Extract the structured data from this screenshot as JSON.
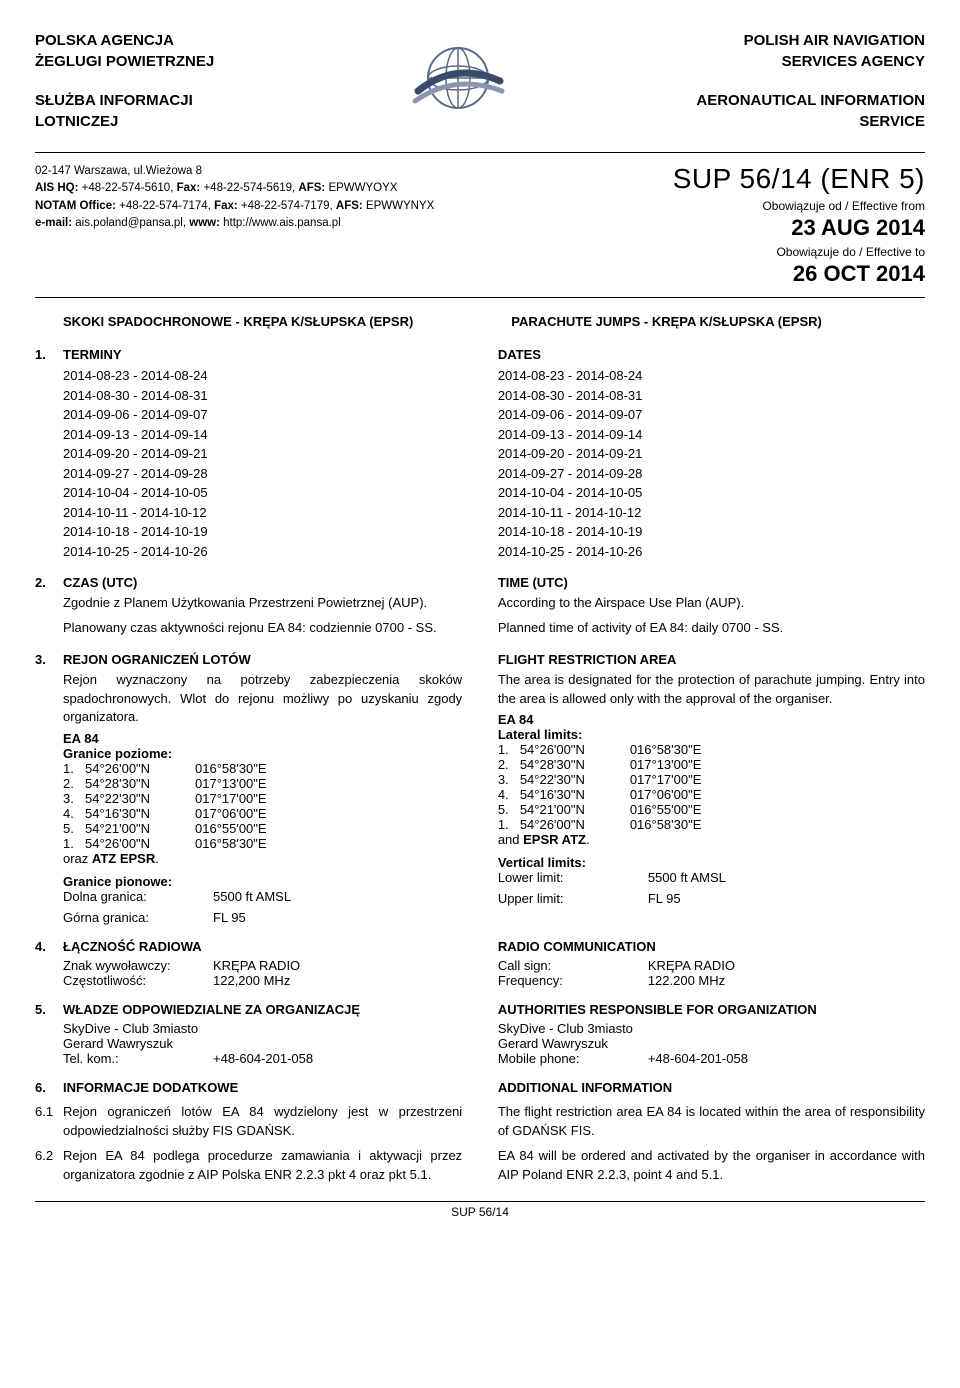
{
  "header": {
    "left_agency": [
      "POLSKA AGENCJA",
      "ŻEGLUGI POWIETRZNEJ"
    ],
    "left_service": [
      "SŁUŻBA INFORMACJI",
      "LOTNICZEJ"
    ],
    "right_agency": [
      "POLISH AIR NAVIGATION",
      "SERVICES AGENCY"
    ],
    "right_service": [
      "AERONAUTICAL INFORMATION",
      "SERVICE"
    ]
  },
  "contact": {
    "addr": "02-147 Warszawa, ul.Wieżowa 8",
    "ais_hq_label": "AIS HQ:",
    "ais_hq": " +48-22-574-5610, ",
    "fax1_label": "Fax:",
    "fax1": " +48-22-574-5619, ",
    "afs1_label": "AFS:",
    "afs1": " EPWWYOYX",
    "notam_label": "NOTAM Office:",
    "notam": " +48-22-574-7174, ",
    "fax2_label": "Fax:",
    "fax2": " +48-22-574-7179, ",
    "afs2_label": "AFS:",
    "afs2": " EPWWYNYX",
    "email_label": "e-mail:",
    "email": " ais.poland@pansa.pl, ",
    "www_label": "www:",
    "www": " http://www.ais.pansa.pl"
  },
  "sup": {
    "title": "SUP 56/14 (ENR 5)",
    "eff_from_label": "Obowiązuje od / Effective from",
    "eff_from": "23 AUG 2014",
    "eff_to_label": "Obowiązuje do / Effective to",
    "eff_to": "26 OCT 2014"
  },
  "titles": {
    "pl": "SKOKI SPADOCHRONOWE - KRĘPA K/SŁUPSKA (EPSR)",
    "en": "PARACHUTE JUMPS - KRĘPA K/SŁUPSKA (EPSR)"
  },
  "s1": {
    "num": "1.",
    "pl_head": "TERMINY",
    "en_head": "DATES",
    "dates": [
      "2014-08-23 - 2014-08-24",
      "2014-08-30 - 2014-08-31",
      "2014-09-06 - 2014-09-07",
      "2014-09-13 - 2014-09-14",
      "2014-09-20 - 2014-09-21",
      "2014-09-27 - 2014-09-28",
      "2014-10-04 - 2014-10-05",
      "2014-10-11 - 2014-10-12",
      "2014-10-18 - 2014-10-19",
      "2014-10-25 - 2014-10-26"
    ]
  },
  "s2": {
    "num": "2.",
    "pl_head": "CZAS (UTC)",
    "en_head": "TIME (UTC)",
    "pl_l1": "Zgodnie z Planem Użytkowania Przestrzeni Powietrznej (AUP).",
    "en_l1": "According to the Airspace Use Plan (AUP).",
    "pl_l2": "Planowany czas aktywności rejonu EA 84: codziennie 0700 - SS.",
    "en_l2": "Planned time of activity of EA 84: daily 0700 - SS."
  },
  "s3": {
    "num": "3.",
    "pl_head": "REJON OGRANICZEŃ LOTÓW",
    "en_head": "FLIGHT RESTRICTION AREA",
    "pl_desc": "Rejon wyznaczony na potrzeby zabezpieczenia skoków spadochronowych. Wlot do rejonu możliwy po uzyskaniu zgody organizatora.",
    "en_desc": "The area is designated for the protection of parachute jumping. Entry into the area is allowed only with the approval of the organiser.",
    "ea": "EA 84",
    "pl_lat_label": "Granice poziome:",
    "en_lat_label": "Lateral limits:",
    "coords": [
      {
        "n": "1.",
        "lat": "54°26'00\"N",
        "lon": "016°58'30\"E"
      },
      {
        "n": "2.",
        "lat": "54°28'30\"N",
        "lon": "017°13'00\"E"
      },
      {
        "n": "3.",
        "lat": "54°22'30\"N",
        "lon": "017°17'00\"E"
      },
      {
        "n": "4.",
        "lat": "54°16'30\"N",
        "lon": "017°06'00\"E"
      },
      {
        "n": "5.",
        "lat": "54°21'00\"N",
        "lon": "016°55'00\"E"
      },
      {
        "n": "1.",
        "lat": "54°26'00\"N",
        "lon": "016°58'30\"E"
      }
    ],
    "pl_atz": "oraz ",
    "pl_atz_b": "ATZ EPSR",
    "en_atz": "and ",
    "en_atz_b": "EPSR ATZ",
    "dot": ".",
    "pl_vert_label": "Granice pionowe:",
    "en_vert_label": "Vertical limits:",
    "pl_lower": "Dolna granica:",
    "en_lower": "Lower limit:",
    "lower_val": "5500 ft AMSL",
    "pl_upper": "Górna granica:",
    "en_upper": "Upper limit:",
    "upper_val": "FL 95"
  },
  "s4": {
    "num": "4.",
    "pl_head": "ŁĄCZNOŚĆ RADIOWA",
    "en_head": "RADIO COMMUNICATION",
    "pl_call": "Znak wywoławczy:",
    "en_call": "Call sign:",
    "call_val": "KRĘPA RADIO",
    "pl_freq": "Częstotliwość:",
    "en_freq": "Frequency:",
    "pl_freq_val": "122,200 MHz",
    "en_freq_val": "122.200 MHz"
  },
  "s5": {
    "num": "5.",
    "pl_head": "WŁADZE ODPOWIEDZIALNE ZA ORGANIZACJĘ",
    "en_head": "AUTHORITIES RESPONSIBLE FOR ORGANIZATION",
    "l1": "SkyDive - Club 3miasto",
    "l2": "Gerard Wawryszuk",
    "pl_tel": "Tel. kom.:",
    "en_tel": "Mobile phone:",
    "tel_val": "+48-604-201-058"
  },
  "s6": {
    "num": "6.",
    "pl_head": "INFORMACJE DODATKOWE",
    "en_head": "ADDITIONAL INFORMATION",
    "n61": "6.1",
    "pl_61": "Rejon ograniczeń lotów EA 84 wydzielony jest w przestrzeni odpowiedzialności służby FIS GDAŃSK.",
    "en_61": "The flight restriction area EA 84 is located within the area of responsibility of GDAŃSK FIS.",
    "n62": "6.2",
    "pl_62": "Rejon EA 84 podlega procedurze zamawiania i aktywacji przez organizatora zgodnie z AIP Polska ENR 2.2.3 pkt 4 oraz pkt 5.1.",
    "en_62": "EA 84 will be ordered and activated by the organiser in accordance with AIP Poland ENR 2.2.3, point 4 and 5.1."
  },
  "footer": "SUP 56/14"
}
